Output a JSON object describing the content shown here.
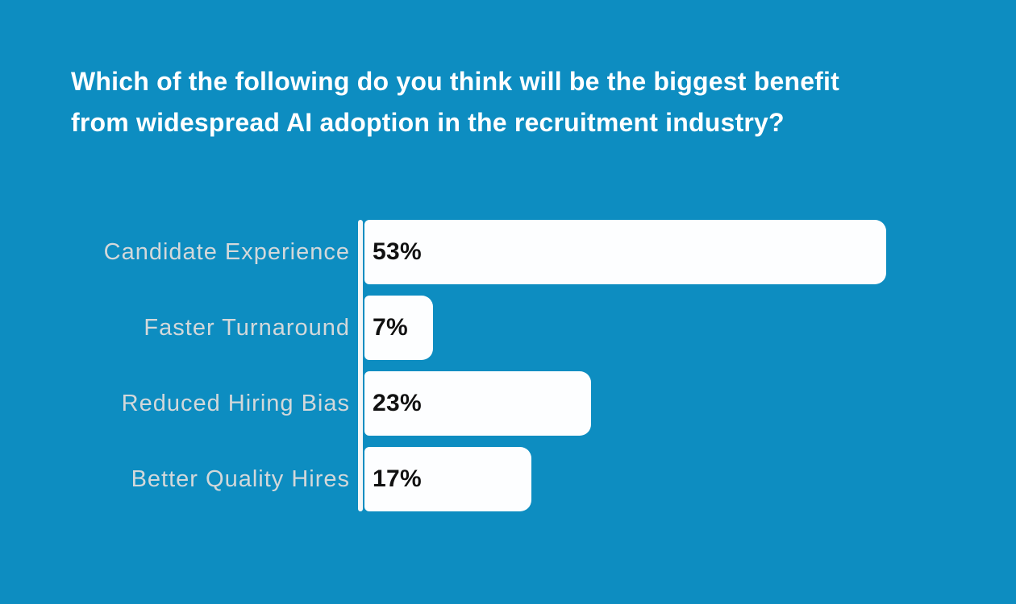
{
  "title": {
    "text": "Which of the following do you think will be the biggest benefit from widespread AI adoption in the recruitment industry?",
    "lines": [
      "Which of the following do you think will be the biggest benefit",
      "from widespread AI adoption in the recruitment industry?"
    ]
  },
  "colors": {
    "background": "#0d8dc1",
    "title_text": "#ffffff",
    "bar_fill": "#fdfeff",
    "category_label": "#d3d8da",
    "value_label": "#111111",
    "axis_line": "#f4f7f8"
  },
  "chart_data": {
    "type": "bar",
    "orientation": "horizontal",
    "title": "Which of the following do you think will be the biggest benefit from widespread AI adoption in the recruitment industry?",
    "categories": [
      "Candidate Experience",
      "Faster Turnaround",
      "Reduced Hiring Bias",
      "Better Quality Hires"
    ],
    "values": [
      53,
      7,
      23,
      17
    ],
    "value_labels": [
      "53%",
      "7%",
      "23%",
      "17%"
    ],
    "xlabel": "",
    "ylabel": "",
    "xlim": [
      0,
      53
    ],
    "grid": false,
    "legend": false,
    "value_label_position": "inside-start"
  }
}
